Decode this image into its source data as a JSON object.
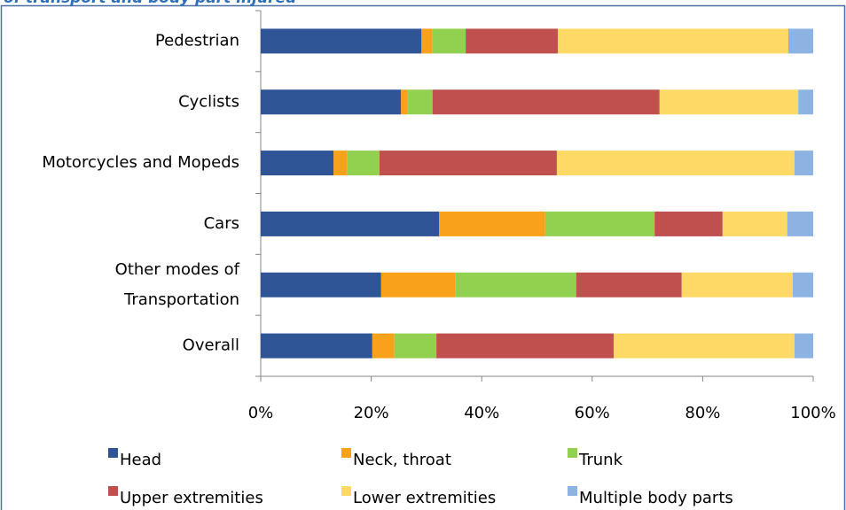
{
  "chart_data": {
    "type": "stacked_barh",
    "title": "of transport and body part injured",
    "categories": [
      "Pedestrian",
      "Cyclists",
      "Motorcycles and Mopeds",
      "Cars",
      "Other modes of Transportation",
      "Overall"
    ],
    "series": [
      {
        "name": "Head",
        "color": "#2f5597",
        "values": [
          29.1,
          25.4,
          13.2,
          32.3,
          21.8,
          20.2
        ]
      },
      {
        "name": "Neck, throat",
        "color": "#f9a11b",
        "values": [
          2.0,
          1.1,
          2.4,
          19.2,
          13.4,
          4.0
        ]
      },
      {
        "name": "Trunk",
        "color": "#92d050",
        "values": [
          6.0,
          4.6,
          5.9,
          19.8,
          21.9,
          7.6
        ]
      },
      {
        "name": "Upper extremities",
        "color": "#c0504d",
        "values": [
          16.7,
          41.1,
          32.1,
          12.3,
          19.1,
          32.1
        ]
      },
      {
        "name": "Lower extremities",
        "color": "#ffd966",
        "values": [
          41.7,
          25.1,
          43.0,
          11.7,
          20.1,
          32.7
        ]
      },
      {
        "name": "Multiple body parts",
        "color": "#8db3e2",
        "values": [
          4.5,
          2.7,
          3.4,
          4.7,
          3.7,
          3.4
        ]
      }
    ],
    "xlim": [
      0,
      100
    ],
    "xticks": [
      {
        "value": 0,
        "label": "0%"
      },
      {
        "value": 20,
        "label": "20%"
      },
      {
        "value": 40,
        "label": "40%"
      },
      {
        "value": 60,
        "label": "60%"
      },
      {
        "value": 80,
        "label": "80%"
      },
      {
        "value": 100,
        "label": "100%"
      }
    ]
  }
}
